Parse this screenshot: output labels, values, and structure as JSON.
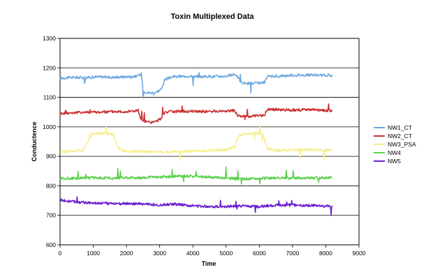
{
  "chart_data": {
    "type": "line",
    "title": "Toxin Multiplexed Data",
    "xlabel": "Time",
    "ylabel": "Conductence",
    "xlim": [
      0,
      9000
    ],
    "ylim": [
      600,
      1300
    ],
    "x_ticks": [
      0,
      1000,
      2000,
      3000,
      4000,
      5000,
      6000,
      7000,
      8000,
      9000
    ],
    "y_ticks": [
      600,
      700,
      800,
      900,
      1000,
      1100,
      1200,
      1300
    ],
    "x_tick_labels": [
      "0",
      "1000",
      "2000",
      "3000",
      "4000",
      "5000",
      "6000",
      "7000",
      "8000",
      "9000"
    ],
    "y_tick_labels": [
      "600",
      "700",
      "800",
      "900",
      "1000",
      "1100",
      "1200",
      "1300"
    ],
    "grid": "horizontal",
    "legend_position": "right",
    "series": [
      {
        "name": "NW1_CT",
        "color": "#6fa8e0",
        "points": [
          [
            0,
            1165
          ],
          [
            400,
            1168
          ],
          [
            800,
            1167
          ],
          [
            1200,
            1170
          ],
          [
            1600,
            1168
          ],
          [
            2000,
            1170
          ],
          [
            2350,
            1172
          ],
          [
            2450,
            1180
          ],
          [
            2500,
            1120
          ],
          [
            2700,
            1115
          ],
          [
            2900,
            1118
          ],
          [
            3050,
            1128
          ],
          [
            3150,
            1160
          ],
          [
            3400,
            1170
          ],
          [
            3800,
            1172
          ],
          [
            4200,
            1170
          ],
          [
            4600,
            1171
          ],
          [
            5000,
            1172
          ],
          [
            5300,
            1178
          ],
          [
            5450,
            1150
          ],
          [
            5700,
            1147
          ],
          [
            6000,
            1148
          ],
          [
            6150,
            1150
          ],
          [
            6250,
            1170
          ],
          [
            6600,
            1172
          ],
          [
            7000,
            1175
          ],
          [
            7400,
            1176
          ],
          [
            7800,
            1175
          ],
          [
            8200,
            1174
          ]
        ]
      },
      {
        "name": "NW2_CT",
        "color": "#cc2f2f",
        "points": [
          [
            0,
            1045
          ],
          [
            400,
            1048
          ],
          [
            800,
            1050
          ],
          [
            1200,
            1050
          ],
          [
            1600,
            1052
          ],
          [
            2000,
            1052
          ],
          [
            2350,
            1055
          ],
          [
            2450,
            1020
          ],
          [
            2700,
            1015
          ],
          [
            2900,
            1018
          ],
          [
            3050,
            1030
          ],
          [
            3150,
            1050
          ],
          [
            3500,
            1052
          ],
          [
            4000,
            1053
          ],
          [
            4500,
            1052
          ],
          [
            5000,
            1054
          ],
          [
            5250,
            1055
          ],
          [
            5350,
            1038
          ],
          [
            5700,
            1035
          ],
          [
            6000,
            1038
          ],
          [
            6150,
            1040
          ],
          [
            6250,
            1060
          ],
          [
            6600,
            1058
          ],
          [
            7000,
            1057
          ],
          [
            7500,
            1058
          ],
          [
            8200,
            1055
          ]
        ]
      },
      {
        "name": "NW3_PSA",
        "color": "#f7ee90",
        "points": [
          [
            0,
            915
          ],
          [
            400,
            918
          ],
          [
            700,
            920
          ],
          [
            900,
            965
          ],
          [
            1000,
            978
          ],
          [
            1300,
            978
          ],
          [
            1600,
            975
          ],
          [
            1750,
            930
          ],
          [
            1900,
            918
          ],
          [
            2500,
            916
          ],
          [
            3000,
            915
          ],
          [
            3500,
            916
          ],
          [
            4000,
            918
          ],
          [
            4500,
            920
          ],
          [
            5000,
            922
          ],
          [
            5250,
            935
          ],
          [
            5400,
            972
          ],
          [
            5700,
            978
          ],
          [
            6100,
            975
          ],
          [
            6250,
            925
          ],
          [
            6600,
            920
          ],
          [
            7000,
            921
          ],
          [
            7500,
            922
          ],
          [
            8200,
            920
          ]
        ]
      },
      {
        "name": "NW4",
        "color": "#5ad04b",
        "points": [
          [
            0,
            825
          ],
          [
            500,
            826
          ],
          [
            1000,
            827
          ],
          [
            1500,
            826
          ],
          [
            2000,
            828
          ],
          [
            2500,
            828
          ],
          [
            3000,
            830
          ],
          [
            3500,
            832
          ],
          [
            4000,
            833
          ],
          [
            4500,
            830
          ],
          [
            5000,
            826
          ],
          [
            5500,
            823
          ],
          [
            6000,
            825
          ],
          [
            6500,
            826
          ],
          [
            7000,
            827
          ],
          [
            7500,
            826
          ],
          [
            8200,
            828
          ]
        ]
      },
      {
        "name": "NW5",
        "color": "#6a1fd0",
        "points": [
          [
            0,
            752
          ],
          [
            500,
            745
          ],
          [
            1000,
            742
          ],
          [
            1500,
            740
          ],
          [
            2000,
            740
          ],
          [
            2500,
            738
          ],
          [
            3000,
            736
          ],
          [
            3500,
            738
          ],
          [
            4000,
            732
          ],
          [
            4500,
            730
          ],
          [
            5000,
            730
          ],
          [
            5500,
            732
          ],
          [
            6000,
            730
          ],
          [
            6500,
            734
          ],
          [
            7000,
            735
          ],
          [
            7500,
            733
          ],
          [
            8200,
            730
          ]
        ]
      }
    ]
  }
}
